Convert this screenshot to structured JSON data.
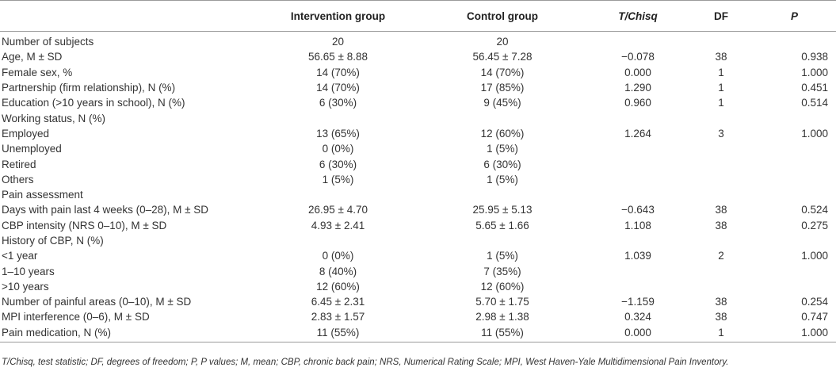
{
  "table": {
    "headers": [
      "",
      "Intervention group",
      "Control group",
      "T/Chisq",
      "DF",
      "P"
    ],
    "rows": [
      [
        "Number of subjects",
        "20",
        "20",
        "",
        "",
        ""
      ],
      [
        "Age, M ± SD",
        "56.65 ± 8.88",
        "56.45 ± 7.28",
        "−0.078",
        "38",
        "0.938"
      ],
      [
        "Female sex, %",
        "14 (70%)",
        "14 (70%)",
        "0.000",
        "1",
        "1.000"
      ],
      [
        "Partnership (firm relationship), N (%)",
        "14 (70%)",
        "17 (85%)",
        "1.290",
        "1",
        "0.451"
      ],
      [
        "Education (>10 years in school), N (%)",
        "6 (30%)",
        "9 (45%)",
        "0.960",
        "1",
        "0.514"
      ],
      [
        "Working status, N (%)",
        "",
        "",
        "",
        "",
        ""
      ],
      [
        "Employed",
        "13 (65%)",
        "12 (60%)",
        "1.264",
        "3",
        "1.000"
      ],
      [
        "Unemployed",
        "0 (0%)",
        "1 (5%)",
        "",
        "",
        ""
      ],
      [
        "Retired",
        "6 (30%)",
        "6 (30%)",
        "",
        "",
        ""
      ],
      [
        "Others",
        "1 (5%)",
        "1 (5%)",
        "",
        "",
        ""
      ],
      [
        "Pain assessment",
        "",
        "",
        "",
        "",
        ""
      ],
      [
        "Days with pain last 4 weeks (0–28), M ± SD",
        "26.95 ± 4.70",
        "25.95 ± 5.13",
        "−0.643",
        "38",
        "0.524"
      ],
      [
        "CBP intensity (NRS 0–10), M ± SD",
        "4.93 ± 2.41",
        "5.65 ± 1.66",
        "1.108",
        "38",
        "0.275"
      ],
      [
        "History of CBP, N (%)",
        "",
        "",
        "",
        "",
        ""
      ],
      [
        "<1 year",
        "0 (0%)",
        "1 (5%)",
        "1.039",
        "2",
        "1.000"
      ],
      [
        "1–10 years",
        "8 (40%)",
        "7 (35%)",
        "",
        "",
        ""
      ],
      [
        ">10 years",
        "12 (60%)",
        "12 (60%)",
        "",
        "",
        ""
      ],
      [
        "Number of painful areas (0–10), M ± SD",
        "6.45 ± 2.31",
        "5.70 ± 1.75",
        "−1.159",
        "38",
        "0.254"
      ],
      [
        "MPI interference (0–6), M ± SD",
        "2.83 ± 1.57",
        "2.98 ± 1.38",
        "0.324",
        "38",
        "0.747"
      ],
      [
        "Pain medication, N (%)",
        "11 (55%)",
        "11 (55%)",
        "0.000",
        "1",
        "1.000"
      ]
    ]
  },
  "footnote": "T/Chisq, test statistic; DF, degrees of freedom; P, P values; M, mean; CBP, chronic back pain; NRS, Numerical Rating Scale; MPI, West Haven-Yale Multidimensional Pain Inventory."
}
